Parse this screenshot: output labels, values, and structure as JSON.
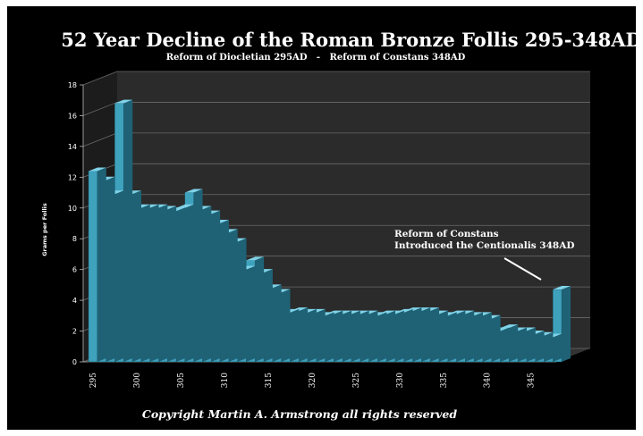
{
  "chart_data": {
    "type": "bar",
    "style": "3d",
    "title": "52 Year Decline of the Roman Bronze Follis 295-348AD",
    "subtitle": "Reform of Diocletian 295AD   -   Reform of Constans 348AD",
    "ylabel": "Grams per Follis",
    "xlabel": "",
    "ylim": [
      0,
      18
    ],
    "yticks": [
      0,
      2,
      4,
      6,
      8,
      10,
      12,
      14,
      16,
      18
    ],
    "xticks": [
      "295",
      "300",
      "305",
      "310",
      "315",
      "320",
      "325",
      "330",
      "335",
      "340",
      "345"
    ],
    "grid": true,
    "categories": [
      295,
      296,
      297,
      298,
      299,
      300,
      301,
      302,
      303,
      304,
      305,
      306,
      307,
      308,
      309,
      310,
      311,
      312,
      313,
      314,
      315,
      316,
      317,
      318,
      319,
      320,
      321,
      322,
      323,
      324,
      325,
      326,
      327,
      328,
      329,
      330,
      331,
      332,
      333,
      334,
      335,
      336,
      337,
      338,
      339,
      340,
      341,
      342,
      343,
      344,
      345,
      346,
      347,
      348
    ],
    "values": [
      12.4,
      11.8,
      10.9,
      16.8,
      10.9,
      10.0,
      10.0,
      10.0,
      9.9,
      9.8,
      10.0,
      11.0,
      9.9,
      9.6,
      9.0,
      8.4,
      7.8,
      6.0,
      6.6,
      5.8,
      4.8,
      4.5,
      3.2,
      3.3,
      3.2,
      3.2,
      3.0,
      3.1,
      3.1,
      3.1,
      3.1,
      3.1,
      3.0,
      3.1,
      3.1,
      3.2,
      3.3,
      3.3,
      3.3,
      3.1,
      3.0,
      3.1,
      3.1,
      3.0,
      3.0,
      2.8,
      2.0,
      2.2,
      2.0,
      2.0,
      1.8,
      1.7,
      1.6,
      4.7
    ],
    "color": "#3fa2bd",
    "annotation": {
      "lines": [
        "Reform of Constans",
        "Introduced the Centionalis 348AD"
      ]
    },
    "footer": "Copyright Martin A. Armstrong all rights reserved"
  }
}
